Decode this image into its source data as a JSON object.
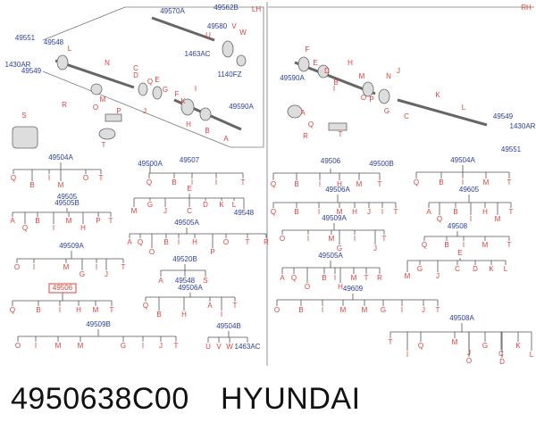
{
  "diagram": {
    "left_callouts": [
      "49570A",
      "49562B",
      "LH",
      "49551",
      "1430AR",
      "49549",
      "49548",
      "L",
      "N",
      "49580",
      "U",
      "V",
      "W",
      "1463AC",
      "1140FZ",
      "C",
      "D",
      "E",
      "G",
      "R",
      "O",
      "P",
      "S",
      "T",
      "F",
      "K",
      "J",
      "I",
      "H",
      "B",
      "A",
      "49590A",
      "M",
      "Q"
    ],
    "right_callouts": [
      "RH",
      "F",
      "E",
      "D",
      "H",
      "M",
      "49590A",
      "B",
      "O",
      "I",
      "G",
      "C",
      "N",
      "J",
      "K",
      "R",
      "A",
      "T",
      "L",
      "49549",
      "1430AR",
      "49551",
      "P",
      "Q"
    ]
  },
  "trees": [
    {
      "parents": [
        "49504A"
      ],
      "children": [
        "Q",
        "B",
        "I",
        "M",
        "O",
        "T"
      ]
    },
    {
      "parents": [
        "49500A",
        "49507"
      ],
      "children": [
        "Q",
        "B",
        "I",
        "I",
        "T"
      ]
    },
    {
      "parents": [
        "E"
      ],
      "children": [
        "M",
        "G",
        "J",
        "C",
        "D",
        "K",
        "L",
        "49548"
      ]
    },
    {
      "parents": [
        "49505",
        "49505B"
      ],
      "children": [
        "A",
        "Q",
        "B",
        "I",
        "M",
        "H",
        "P",
        "T"
      ]
    },
    {
      "parents": [
        "49505A"
      ],
      "children": [
        "A",
        "Q",
        "O",
        "B",
        "I",
        "H",
        "P",
        "O",
        "T",
        "R"
      ]
    },
    {
      "parents": [
        "49509A"
      ],
      "children": [
        "O",
        "I",
        "M",
        "G",
        "I",
        "J",
        "T"
      ]
    },
    {
      "parents": [
        "49520B"
      ],
      "children": [
        "A",
        "49548",
        "S"
      ]
    },
    {
      "parents": [
        "49506A"
      ],
      "children": [
        "Q",
        "B",
        "H",
        "A",
        "I",
        "T"
      ]
    },
    {
      "parents": [
        "49506"
      ],
      "highlighted": true,
      "children": [
        "Q",
        "B",
        "I",
        "H",
        "M",
        "T"
      ]
    },
    {
      "parents": [
        "49509B"
      ],
      "children": [
        "O",
        "I",
        "M",
        "M",
        "G",
        "I",
        "J",
        "T"
      ]
    },
    {
      "parents": [
        "49504B"
      ],
      "children": [
        "U",
        "V",
        "W",
        "1463AC"
      ]
    },
    {
      "parents": [
        "49506",
        "49500B"
      ],
      "children": [
        "Q",
        "B",
        "I",
        "H",
        "M",
        "T"
      ]
    },
    {
      "parents": [
        "49504A"
      ],
      "children": [
        "Q",
        "B",
        "I",
        "M",
        "T"
      ]
    },
    {
      "parents": [
        "49506A"
      ],
      "children": [
        "Q",
        "B",
        "I",
        "M",
        "H",
        "J",
        "I",
        "T"
      ]
    },
    {
      "parents": [
        "49605"
      ],
      "children": [
        "A",
        "Q",
        "B",
        "I",
        "H",
        "M",
        "T"
      ]
    },
    {
      "parents": [
        "49509A"
      ],
      "children": [
        "O",
        "I",
        "M",
        "G",
        "I",
        "J",
        "T"
      ]
    },
    {
      "parents": [
        "49508"
      ],
      "children": [
        "Q",
        "B",
        "I",
        "M",
        "T"
      ]
    },
    {
      "parents": [
        "E"
      ],
      "children": [
        "M",
        "G",
        "J",
        "C",
        "D",
        "K",
        "L"
      ]
    },
    {
      "parents": [
        "49505A"
      ],
      "children": [
        "A",
        "Q",
        "O",
        "B",
        "I",
        "H",
        "M",
        "T",
        "R"
      ]
    },
    {
      "parents": [
        "49609"
      ],
      "children": [
        "O",
        "B",
        "I",
        "M",
        "M",
        "G",
        "I",
        "J",
        "T"
      ]
    },
    {
      "parents": [
        "49508A"
      ],
      "children": [
        "T",
        "I",
        "Q",
        "M",
        "J",
        "O",
        "G",
        "C",
        "D",
        "K",
        "L"
      ]
    }
  ],
  "footer": {
    "part_number": "4950638C00",
    "brand": "HYUNDAI"
  }
}
